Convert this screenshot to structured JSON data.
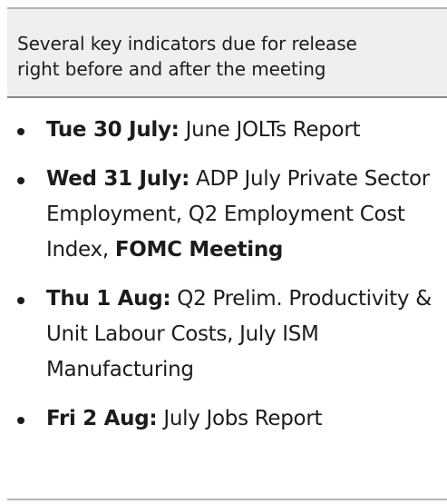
{
  "header": {
    "title_line1": "Several key indicators due for release",
    "title_line2": "right before and after the meeting"
  },
  "items": [
    {
      "date": "Tue 30 July:",
      "text": " June JOLTs Report"
    },
    {
      "date": "Wed 31 July:",
      "text": " ADP July Private Sector Employment, Q2 Employment Cost Index, ",
      "bold_tail": "FOMC Meeting"
    },
    {
      "date": "Thu 1 Aug:",
      "text": " Q2 Prelim. Productivity & Unit Labour Costs, July ISM Manufacturing"
    },
    {
      "date": "Fri 2 Aug:",
      "text": " July Jobs Report"
    }
  ]
}
